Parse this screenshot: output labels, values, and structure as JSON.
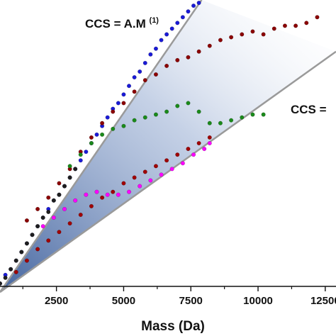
{
  "chart_data": {
    "type": "scatter",
    "title": "",
    "xlabel": "Mass (Da)",
    "ylabel": "",
    "xlim": [
      400,
      12900
    ],
    "ylim": [
      0,
      1
    ],
    "x_ticks": [
      2500,
      5000,
      7500,
      10000,
      12500
    ],
    "x_tick_labels": [
      "2500",
      "5000",
      "7500",
      "10000",
      "12500"
    ],
    "grid": false,
    "legend": "none",
    "annotations": {
      "upper_fit": {
        "base": "CCS = A.M",
        "sup": "(1)"
      },
      "lower_fit": {
        "text": "CCS ="
      }
    },
    "fit_lines": [
      {
        "label": "upper",
        "x": [
          400,
          7900
        ],
        "y": [
          -0.02,
          1.0
        ],
        "color": "#9a9a9a"
      },
      {
        "label": "lower",
        "x": [
          400,
          12900
        ],
        "y": [
          -0.02,
          0.82
        ],
        "color": "#9a9a9a"
      }
    ],
    "series": [
      {
        "color": "#1a1ad6",
        "x": [
          400,
          600,
          800,
          1000,
          1200,
          1400,
          1600,
          1800,
          2000,
          2200,
          2400,
          2600,
          2800,
          3000,
          3200,
          3400,
          3600,
          3800,
          4000,
          4200,
          4400,
          4600,
          4800,
          5000,
          5200,
          5400,
          5600,
          5800,
          6000,
          6200,
          6400,
          6600,
          6800,
          7000,
          7200,
          7400,
          7600,
          7800
        ],
        "y": [
          0.01,
          0.04,
          0.06,
          0.09,
          0.12,
          0.15,
          0.18,
          0.21,
          0.24,
          0.27,
          0.3,
          0.32,
          0.35,
          0.38,
          0.41,
          0.44,
          0.47,
          0.5,
          0.53,
          0.56,
          0.59,
          0.62,
          0.64,
          0.67,
          0.7,
          0.73,
          0.75,
          0.78,
          0.81,
          0.83,
          0.86,
          0.88,
          0.9,
          0.92,
          0.94,
          0.96,
          0.98,
          0.99
        ]
      },
      {
        "color": "#1e1e1e",
        "x": [
          400,
          600,
          800,
          1000,
          1200,
          1400,
          1600,
          1800,
          2000,
          2200,
          2400,
          2600,
          2800,
          3000,
          3200
        ],
        "y": [
          0.01,
          0.03,
          0.06,
          0.09,
          0.12,
          0.15,
          0.18,
          0.21,
          0.24,
          0.26,
          0.3,
          0.32,
          0.35,
          0.38,
          0.41
        ]
      },
      {
        "color": "#8b0000",
        "x": [
          1400,
          1800,
          2200,
          2600,
          3000,
          3400,
          3800,
          4200,
          4600,
          5000,
          5400,
          5800,
          6200,
          6600,
          7000,
          7400,
          7800,
          8200,
          8600,
          9000,
          9400,
          9800,
          10200,
          10600,
          11000,
          11400,
          11800,
          12200
        ],
        "y": [
          0.23,
          0.27,
          0.31,
          0.36,
          0.41,
          0.47,
          0.52,
          0.57,
          0.61,
          0.64,
          0.68,
          0.72,
          0.74,
          0.77,
          0.79,
          0.8,
          0.82,
          0.84,
          0.86,
          0.87,
          0.88,
          0.89,
          0.88,
          0.9,
          0.91,
          0.91,
          0.92,
          0.94
        ]
      },
      {
        "color": "#a00000",
        "x": [
          1000,
          1400,
          1800,
          2200,
          2600,
          3000,
          3400,
          3800,
          4200,
          4600,
          5000,
          5400,
          5800,
          6200,
          6600,
          7000,
          7400,
          7800,
          8200
        ],
        "y": [
          0.05,
          0.09,
          0.13,
          0.16,
          0.19,
          0.22,
          0.25,
          0.28,
          0.31,
          0.33,
          0.36,
          0.38,
          0.4,
          0.42,
          0.44,
          0.46,
          0.48,
          0.5,
          0.52
        ]
      },
      {
        "color": "#1a8a1a",
        "x": [
          3000,
          3400,
          3800,
          4200,
          4600,
          5000,
          5400,
          5800,
          6200,
          6600,
          7000,
          7400,
          7800,
          8200,
          8600,
          9000,
          9400,
          9800,
          10200
        ],
        "y": [
          0.42,
          0.46,
          0.5,
          0.53,
          0.55,
          0.56,
          0.58,
          0.59,
          0.6,
          0.61,
          0.63,
          0.64,
          0.61,
          0.57,
          0.57,
          0.58,
          0.59,
          0.6,
          0.6
        ]
      },
      {
        "color": "#ff00ff",
        "x": [
          2000,
          2400,
          2800,
          3200,
          3600,
          4000,
          4400,
          4800,
          5200,
          5600,
          6000,
          6400,
          6800,
          7200,
          7600,
          8000,
          8200
        ],
        "y": [
          0.21,
          0.24,
          0.27,
          0.3,
          0.32,
          0.33,
          0.32,
          0.32,
          0.33,
          0.35,
          0.37,
          0.39,
          0.41,
          0.43,
          0.46,
          0.48,
          0.5
        ]
      }
    ]
  }
}
